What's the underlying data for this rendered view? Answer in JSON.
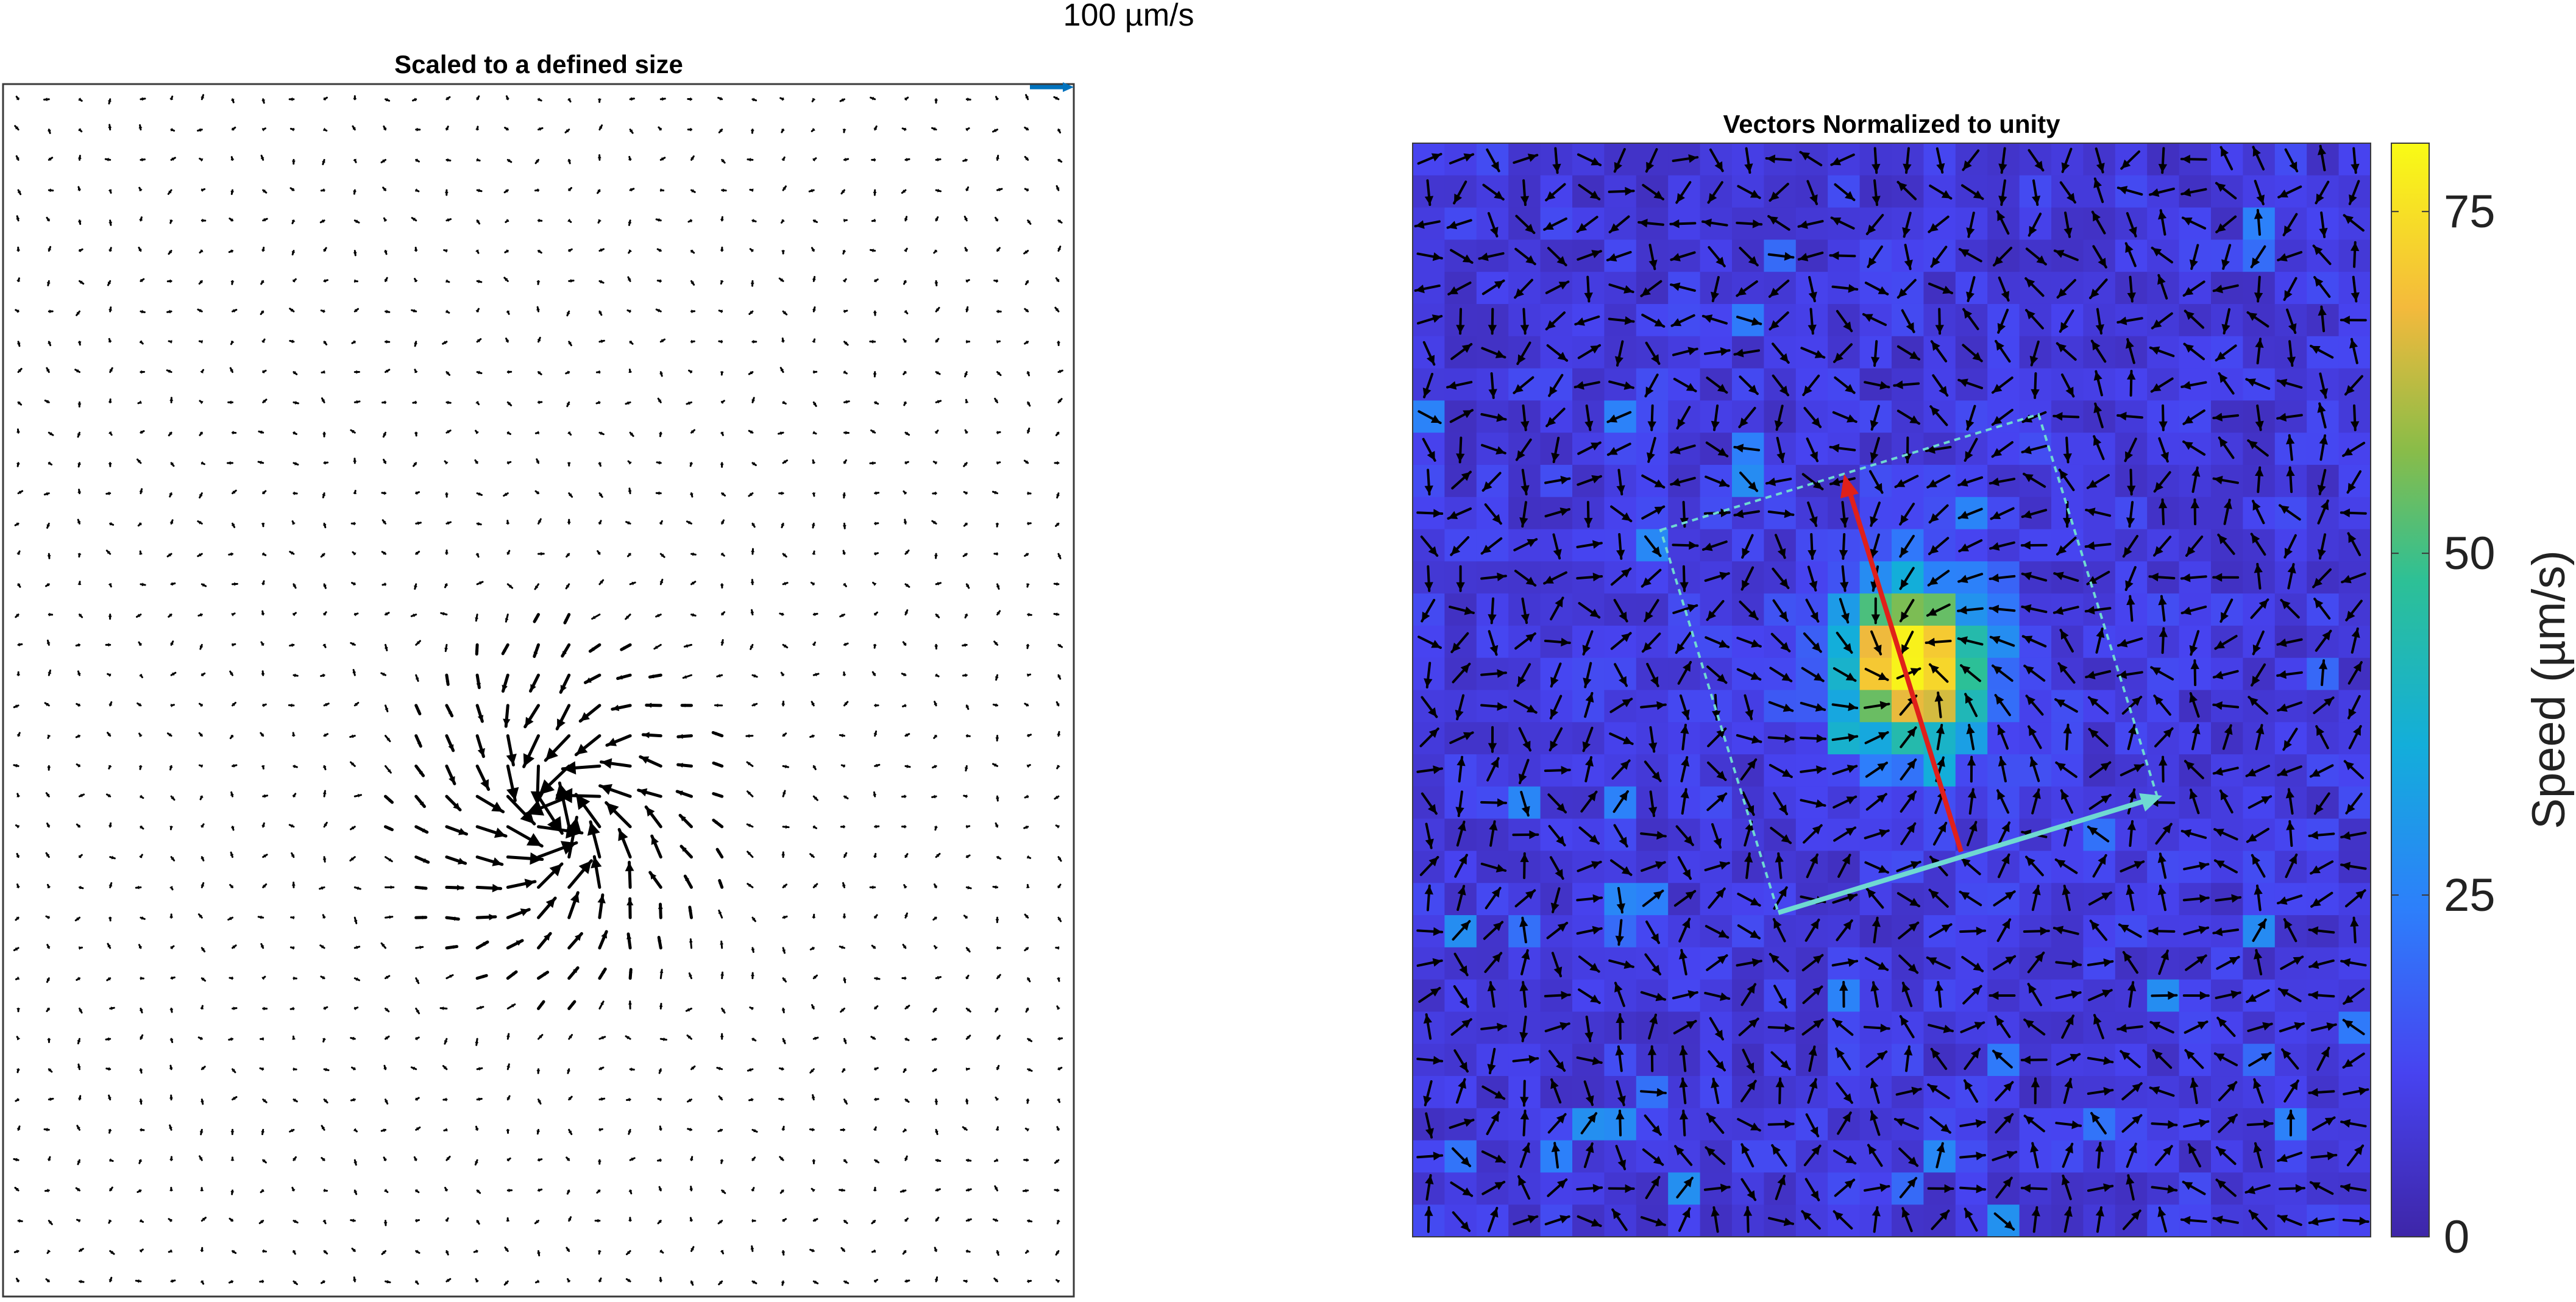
{
  "scale_label": "100 µm/s",
  "colors": {
    "arrow": "#000000",
    "scale_arrow": "#0072BD",
    "guide_axis": "#5fd8d0",
    "highlight_arrow": "#e0201a",
    "colormap": "parula"
  },
  "chart_data": [
    {
      "type": "quiver",
      "title": "Scaled to a defined size",
      "xlabel": "",
      "ylabel": "",
      "grid": false,
      "grid_size": [
        35,
        40
      ],
      "arrow_scale": "speed-proportional",
      "reference_arrow": {
        "label": "100 µm/s",
        "value": 100,
        "units": "µm/s"
      },
      "flow_feature": {
        "type": "converging vortex",
        "location": [
          0.52,
          0.6
        ],
        "peak_speed": 75
      }
    },
    {
      "type": "quiver-heatmap",
      "title": "Vectors Normalized to unity",
      "xlabel": "",
      "ylabel": "",
      "grid": false,
      "grid_size": [
        30,
        34
      ],
      "arrow_scale": "unit length",
      "colorbar": {
        "label": "Speed (µm/s)",
        "ticks": [
          0,
          25,
          50,
          75
        ],
        "tick_labels": [
          "0",
          "25",
          "50",
          "75"
        ],
        "range": [
          0,
          80
        ],
        "colormap": "parula"
      },
      "flow_feature": {
        "type": "converging vortex",
        "location": [
          0.52,
          0.48
        ],
        "peak_speed": 75
      }
    }
  ]
}
